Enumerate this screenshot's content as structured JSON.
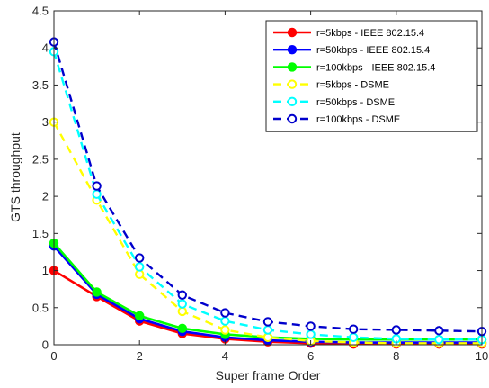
{
  "chart_data": {
    "type": "line",
    "xlabel": "Super frame Order",
    "ylabel": "GTS throughput",
    "xlim": [
      0,
      10
    ],
    "ylim": [
      0,
      4.5
    ],
    "xticks": [
      "0",
      "2",
      "4",
      "6",
      "8",
      "10"
    ],
    "yticks": [
      "0",
      "0.5",
      "1",
      "1.5",
      "2",
      "2.5",
      "3",
      "3.5",
      "4",
      "4.5"
    ],
    "grid": false,
    "legend_position": "top-right",
    "x": [
      0,
      1,
      2,
      3,
      4,
      5,
      6,
      7,
      8,
      9,
      10
    ],
    "series": [
      {
        "name": "r=5kbps - IEEE 802.15.4",
        "color": "#ff0000",
        "dash": "solid",
        "marker": "filled",
        "values": [
          1.0,
          0.65,
          0.32,
          0.15,
          0.08,
          0.04,
          0.02,
          0.01,
          0.01,
          0.01,
          0.01
        ]
      },
      {
        "name": "r=50kbps - IEEE 802.15.4",
        "color": "#0000ff",
        "dash": "solid",
        "marker": "filled",
        "values": [
          1.33,
          0.68,
          0.35,
          0.18,
          0.1,
          0.06,
          0.04,
          0.03,
          0.03,
          0.03,
          0.03
        ]
      },
      {
        "name": "r=100kbps - IEEE 802.15.4",
        "color": "#00ff00",
        "dash": "solid",
        "marker": "filled",
        "values": [
          1.37,
          0.71,
          0.39,
          0.22,
          0.14,
          0.1,
          0.08,
          0.07,
          0.07,
          0.07,
          0.07
        ]
      },
      {
        "name": "r=5kbps - DSME",
        "color": "#ffff00",
        "dash": "dashed",
        "marker": "open",
        "values": [
          3.0,
          1.95,
          0.95,
          0.45,
          0.2,
          0.1,
          0.05,
          0.03,
          0.02,
          0.02,
          0.02
        ]
      },
      {
        "name": "r=50kbps - DSME",
        "color": "#00ffff",
        "dash": "dashed",
        "marker": "open",
        "values": [
          3.95,
          2.03,
          1.05,
          0.55,
          0.32,
          0.2,
          0.14,
          0.1,
          0.08,
          0.07,
          0.07
        ]
      },
      {
        "name": "r=100kbps - DSME",
        "color": "#0000cc",
        "dash": "dashed",
        "marker": "open",
        "values": [
          4.08,
          2.14,
          1.17,
          0.67,
          0.43,
          0.31,
          0.25,
          0.21,
          0.2,
          0.19,
          0.18
        ]
      }
    ]
  }
}
